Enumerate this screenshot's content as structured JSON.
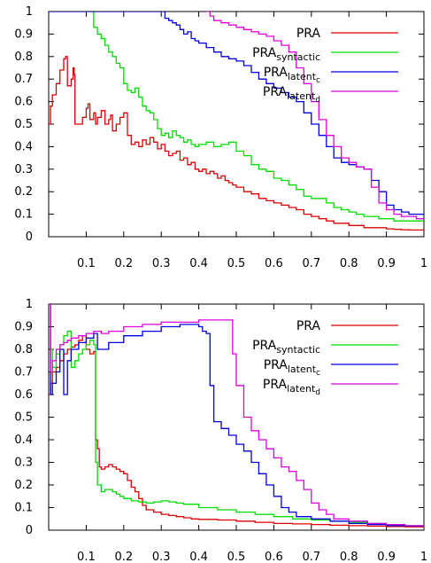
{
  "chart_data": [
    {
      "type": "line",
      "title": "",
      "xlabel": "",
      "ylabel": "",
      "xlim": [
        0,
        1
      ],
      "ylim": [
        0,
        1
      ],
      "x_ticks": [
        "0.1",
        "0.2",
        "0.3",
        "0.4",
        "0.5",
        "0.6",
        "0.7",
        "0.8",
        "0.9",
        "1"
      ],
      "y_ticks": [
        "0",
        "0.1",
        "0.2",
        "0.3",
        "0.4",
        "0.5",
        "0.6",
        "0.7",
        "0.8",
        "0.9",
        "1"
      ],
      "grid": false,
      "legend_position": "top-right",
      "series": [
        {
          "name": "PRA",
          "name_sub": "",
          "color": "#dd0000",
          "x": [
            0.0,
            0.005,
            0.01,
            0.02,
            0.03,
            0.04,
            0.045,
            0.05,
            0.06,
            0.065,
            0.068,
            0.07,
            0.09,
            0.1,
            0.105,
            0.11,
            0.12,
            0.125,
            0.13,
            0.14,
            0.15,
            0.16,
            0.165,
            0.17,
            0.18,
            0.19,
            0.2,
            0.21,
            0.22,
            0.23,
            0.24,
            0.25,
            0.26,
            0.27,
            0.28,
            0.29,
            0.3,
            0.31,
            0.32,
            0.33,
            0.34,
            0.35,
            0.36,
            0.37,
            0.38,
            0.39,
            0.4,
            0.41,
            0.42,
            0.43,
            0.44,
            0.45,
            0.46,
            0.47,
            0.48,
            0.49,
            0.5,
            0.52,
            0.54,
            0.56,
            0.58,
            0.6,
            0.62,
            0.64,
            0.66,
            0.68,
            0.7,
            0.72,
            0.74,
            0.76,
            0.78,
            0.8,
            0.82,
            0.84,
            0.86,
            0.88,
            0.9,
            0.92,
            0.94,
            0.96,
            0.98,
            1.0
          ],
          "y": [
            0.5,
            0.58,
            0.63,
            0.68,
            0.74,
            0.79,
            0.8,
            0.67,
            0.7,
            0.75,
            0.72,
            0.5,
            0.53,
            0.57,
            0.59,
            0.52,
            0.55,
            0.5,
            0.53,
            0.56,
            0.5,
            0.52,
            0.54,
            0.47,
            0.5,
            0.53,
            0.55,
            0.45,
            0.41,
            0.42,
            0.4,
            0.43,
            0.41,
            0.44,
            0.42,
            0.39,
            0.41,
            0.38,
            0.36,
            0.37,
            0.38,
            0.34,
            0.35,
            0.32,
            0.33,
            0.3,
            0.29,
            0.3,
            0.28,
            0.29,
            0.28,
            0.26,
            0.27,
            0.25,
            0.24,
            0.23,
            0.22,
            0.2,
            0.19,
            0.17,
            0.16,
            0.15,
            0.14,
            0.13,
            0.12,
            0.1,
            0.09,
            0.08,
            0.07,
            0.06,
            0.06,
            0.05,
            0.05,
            0.04,
            0.04,
            0.04,
            0.035,
            0.033,
            0.031,
            0.03,
            0.03,
            0.03
          ]
        },
        {
          "name": "PRA",
          "name_sub": "syntactic",
          "color": "#00dd00",
          "x": [
            0.115,
            0.12,
            0.13,
            0.14,
            0.15,
            0.16,
            0.17,
            0.18,
            0.19,
            0.2,
            0.21,
            0.22,
            0.23,
            0.24,
            0.25,
            0.26,
            0.27,
            0.28,
            0.29,
            0.3,
            0.31,
            0.32,
            0.33,
            0.34,
            0.35,
            0.36,
            0.37,
            0.38,
            0.39,
            0.4,
            0.42,
            0.44,
            0.46,
            0.48,
            0.5,
            0.52,
            0.54,
            0.56,
            0.58,
            0.6,
            0.62,
            0.64,
            0.66,
            0.68,
            0.7,
            0.72,
            0.74,
            0.76,
            0.78,
            0.8,
            0.82,
            0.84,
            0.86,
            0.88,
            0.9,
            0.92,
            0.94,
            0.96,
            0.98,
            1.0
          ],
          "y": [
            1.0,
            0.93,
            0.9,
            0.88,
            0.85,
            0.82,
            0.8,
            0.77,
            0.75,
            0.68,
            0.65,
            0.64,
            0.66,
            0.62,
            0.58,
            0.56,
            0.55,
            0.52,
            0.48,
            0.45,
            0.46,
            0.44,
            0.47,
            0.45,
            0.44,
            0.42,
            0.43,
            0.41,
            0.4,
            0.41,
            0.42,
            0.4,
            0.41,
            0.42,
            0.38,
            0.36,
            0.32,
            0.3,
            0.29,
            0.26,
            0.25,
            0.23,
            0.21,
            0.18,
            0.17,
            0.17,
            0.15,
            0.13,
            0.12,
            0.11,
            0.1,
            0.09,
            0.09,
            0.08,
            0.08,
            0.07,
            0.07,
            0.07,
            0.07,
            0.07
          ]
        },
        {
          "name": "PRA",
          "name_sub": "latent_c",
          "color": "#0000dd",
          "x": [
            0.0,
            0.3,
            0.31,
            0.32,
            0.33,
            0.34,
            0.35,
            0.36,
            0.37,
            0.38,
            0.39,
            0.4,
            0.42,
            0.44,
            0.46,
            0.48,
            0.5,
            0.52,
            0.54,
            0.56,
            0.58,
            0.6,
            0.62,
            0.64,
            0.66,
            0.68,
            0.7,
            0.72,
            0.74,
            0.76,
            0.78,
            0.8,
            0.82,
            0.84,
            0.86,
            0.88,
            0.9,
            0.92,
            0.94,
            0.96,
            0.98,
            1.0
          ],
          "y": [
            1.0,
            1.0,
            0.97,
            0.96,
            0.95,
            0.94,
            0.92,
            0.9,
            0.91,
            0.88,
            0.87,
            0.86,
            0.84,
            0.82,
            0.8,
            0.79,
            0.78,
            0.76,
            0.73,
            0.7,
            0.68,
            0.66,
            0.64,
            0.62,
            0.6,
            0.55,
            0.5,
            0.45,
            0.4,
            0.35,
            0.33,
            0.32,
            0.31,
            0.3,
            0.25,
            0.2,
            0.14,
            0.12,
            0.11,
            0.1,
            0.1,
            0.1
          ]
        },
        {
          "name": "PRA",
          "name_sub": "latent_d",
          "color": "#dd00dd",
          "x": [
            0.42,
            0.43,
            0.44,
            0.46,
            0.48,
            0.5,
            0.52,
            0.54,
            0.56,
            0.58,
            0.6,
            0.62,
            0.64,
            0.66,
            0.68,
            0.7,
            0.72,
            0.74,
            0.76,
            0.78,
            0.8,
            0.82,
            0.84,
            0.86,
            0.88,
            0.9,
            0.92,
            0.94,
            0.96,
            0.98,
            1.0
          ],
          "y": [
            1.0,
            0.98,
            0.96,
            0.95,
            0.94,
            0.93,
            0.92,
            0.91,
            0.9,
            0.89,
            0.87,
            0.85,
            0.82,
            0.75,
            0.68,
            0.6,
            0.52,
            0.45,
            0.4,
            0.35,
            0.33,
            0.31,
            0.3,
            0.22,
            0.15,
            0.12,
            0.1,
            0.09,
            0.09,
            0.08,
            0.08
          ]
        }
      ]
    },
    {
      "type": "line",
      "title": "",
      "xlabel": "",
      "ylabel": "",
      "xlim": [
        0,
        1
      ],
      "ylim": [
        0,
        1
      ],
      "x_ticks": [
        "0.1",
        "0.2",
        "0.3",
        "0.4",
        "0.5",
        "0.6",
        "0.7",
        "0.8",
        "0.9",
        "1"
      ],
      "y_ticks": [
        "0",
        "0.1",
        "0.2",
        "0.3",
        "0.4",
        "0.5",
        "0.6",
        "0.7",
        "0.8",
        "0.9",
        "1"
      ],
      "grid": false,
      "legend_position": "top-right",
      "series": [
        {
          "name": "PRA",
          "name_sub": "",
          "color": "#dd0000",
          "x": [
            0.0,
            0.005,
            0.01,
            0.02,
            0.03,
            0.04,
            0.05,
            0.06,
            0.07,
            0.08,
            0.09,
            0.1,
            0.11,
            0.12,
            0.125,
            0.13,
            0.135,
            0.14,
            0.15,
            0.16,
            0.17,
            0.18,
            0.19,
            0.2,
            0.21,
            0.22,
            0.23,
            0.24,
            0.25,
            0.26,
            0.28,
            0.3,
            0.32,
            0.34,
            0.36,
            0.38,
            0.4,
            0.45,
            0.5,
            0.55,
            0.6,
            0.65,
            0.7,
            0.75,
            0.8,
            0.85,
            0.9,
            0.95,
            1.0
          ],
          "y": [
            0.6,
            0.65,
            0.7,
            0.72,
            0.75,
            0.78,
            0.8,
            0.81,
            0.82,
            0.84,
            0.86,
            0.8,
            0.78,
            0.79,
            0.4,
            0.36,
            0.28,
            0.27,
            0.28,
            0.29,
            0.28,
            0.27,
            0.26,
            0.25,
            0.22,
            0.19,
            0.17,
            0.14,
            0.11,
            0.09,
            0.08,
            0.07,
            0.065,
            0.06,
            0.055,
            0.05,
            0.048,
            0.045,
            0.04,
            0.035,
            0.03,
            0.028,
            0.025,
            0.022,
            0.02,
            0.018,
            0.016,
            0.015,
            0.015
          ]
        },
        {
          "name": "PRA",
          "name_sub": "syntactic",
          "color": "#00dd00",
          "x": [
            0.0,
            0.005,
            0.01,
            0.02,
            0.03,
            0.04,
            0.05,
            0.06,
            0.07,
            0.08,
            0.09,
            0.1,
            0.11,
            0.12,
            0.125,
            0.13,
            0.14,
            0.15,
            0.16,
            0.17,
            0.18,
            0.19,
            0.2,
            0.22,
            0.24,
            0.26,
            0.28,
            0.3,
            0.32,
            0.34,
            0.36,
            0.4,
            0.45,
            0.5,
            0.55,
            0.6,
            0.65,
            0.7,
            0.75,
            0.8,
            0.85,
            0.9,
            0.95,
            1.0
          ],
          "y": [
            1.0,
            0.8,
            0.72,
            0.78,
            0.82,
            0.86,
            0.88,
            0.72,
            0.75,
            0.78,
            0.8,
            0.82,
            0.84,
            0.82,
            0.3,
            0.2,
            0.17,
            0.18,
            0.18,
            0.17,
            0.16,
            0.15,
            0.14,
            0.13,
            0.125,
            0.12,
            0.125,
            0.13,
            0.125,
            0.12,
            0.115,
            0.1,
            0.09,
            0.08,
            0.07,
            0.06,
            0.05,
            0.045,
            0.04,
            0.035,
            0.03,
            0.025,
            0.02,
            0.02
          ]
        },
        {
          "name": "PRA",
          "name_sub": "latent_c",
          "color": "#0000dd",
          "x": [
            0.0,
            0.005,
            0.01,
            0.02,
            0.03,
            0.04,
            0.05,
            0.06,
            0.08,
            0.1,
            0.12,
            0.13,
            0.14,
            0.16,
            0.2,
            0.25,
            0.3,
            0.35,
            0.38,
            0.4,
            0.41,
            0.42,
            0.43,
            0.44,
            0.46,
            0.48,
            0.5,
            0.52,
            0.54,
            0.56,
            0.58,
            0.6,
            0.62,
            0.64,
            0.66,
            0.7,
            0.75,
            0.8,
            0.85,
            0.9,
            0.95,
            1.0
          ],
          "y": [
            1.0,
            0.6,
            0.65,
            0.7,
            0.8,
            0.6,
            0.75,
            0.8,
            0.83,
            0.85,
            0.87,
            0.8,
            0.8,
            0.83,
            0.86,
            0.88,
            0.9,
            0.91,
            0.91,
            0.9,
            0.88,
            0.87,
            0.64,
            0.48,
            0.45,
            0.42,
            0.38,
            0.35,
            0.3,
            0.25,
            0.2,
            0.15,
            0.1,
            0.08,
            0.06,
            0.05,
            0.04,
            0.03,
            0.025,
            0.02,
            0.018,
            0.015
          ]
        },
        {
          "name": "PRA",
          "name_sub": "latent_d",
          "color": "#dd00dd",
          "x": [
            0.0,
            0.005,
            0.01,
            0.02,
            0.03,
            0.04,
            0.05,
            0.06,
            0.08,
            0.1,
            0.12,
            0.14,
            0.16,
            0.2,
            0.25,
            0.3,
            0.35,
            0.4,
            0.45,
            0.48,
            0.49,
            0.5,
            0.52,
            0.54,
            0.56,
            0.58,
            0.6,
            0.62,
            0.64,
            0.66,
            0.68,
            0.7,
            0.72,
            0.74,
            0.76,
            0.8,
            0.85,
            0.9,
            0.95,
            1.0
          ],
          "y": [
            1.0,
            0.7,
            0.75,
            0.8,
            0.82,
            0.83,
            0.84,
            0.85,
            0.86,
            0.87,
            0.88,
            0.87,
            0.88,
            0.9,
            0.91,
            0.92,
            0.92,
            0.93,
            0.93,
            0.93,
            0.78,
            0.64,
            0.5,
            0.44,
            0.4,
            0.36,
            0.32,
            0.28,
            0.26,
            0.22,
            0.18,
            0.12,
            0.09,
            0.07,
            0.05,
            0.04,
            0.03,
            0.025,
            0.02,
            0.015
          ]
        }
      ]
    }
  ]
}
